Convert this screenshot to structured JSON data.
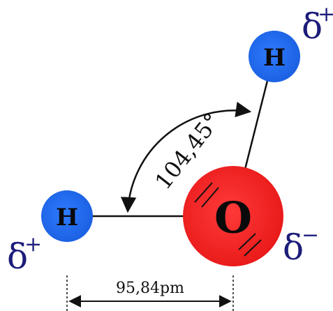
{
  "atoms": {
    "oxygen": {
      "symbol": "O",
      "charge": "δ",
      "charge_sign": "−",
      "color": "#ee1c1c"
    },
    "hydrogen_left": {
      "symbol": "H",
      "charge": "δ",
      "charge_sign": "+",
      "color": "#1e63e6"
    },
    "hydrogen_right": {
      "symbol": "H",
      "charge": "δ",
      "charge_sign": "+",
      "color": "#1e63e6"
    }
  },
  "bond_angle": {
    "label": "104,45°"
  },
  "bond_length": {
    "label": "95,84pm"
  },
  "colors": {
    "bond": "#111111",
    "charge_text": "#1c1c7a"
  }
}
